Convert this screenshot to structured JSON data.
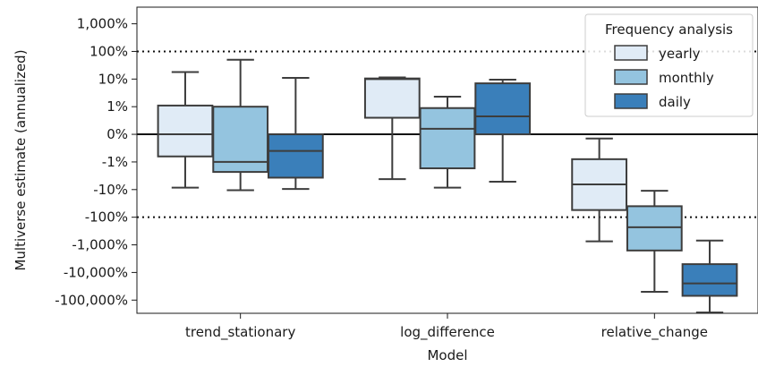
{
  "chart_data": {
    "type": "boxplot",
    "xlabel": "Model",
    "ylabel": "Multiverse estimate (annualized)",
    "y_scale": "symlog",
    "ylim": [
      -300000,
      4000
    ],
    "y_ticks": [
      {
        "value": 1000,
        "label": "1,000%"
      },
      {
        "value": 100,
        "label": "100%"
      },
      {
        "value": 10,
        "label": "10%"
      },
      {
        "value": 1,
        "label": "1%"
      },
      {
        "value": 0,
        "label": "0%"
      },
      {
        "value": -1,
        "label": "-1%"
      },
      {
        "value": -10,
        "label": "-10%"
      },
      {
        "value": -100,
        "label": "-100%"
      },
      {
        "value": -1000,
        "label": "-1,000%"
      },
      {
        "value": -10000,
        "label": "-10,000%"
      },
      {
        "value": -100000,
        "label": "-100,000%"
      }
    ],
    "reference_lines": [
      {
        "value": 100,
        "style": "dotted"
      },
      {
        "value": 0,
        "style": "solid"
      },
      {
        "value": -100,
        "style": "dotted"
      }
    ],
    "categories": [
      "trend_stationary",
      "log_difference",
      "relative_change"
    ],
    "legend": {
      "title": "Frequency analysis",
      "position": "top-right"
    },
    "series": [
      {
        "name": "yearly",
        "color": "#e0ebf6",
        "boxes": [
          {
            "whisker_low": -8.5,
            "q1": -0.8,
            "median": 0,
            "q3": 1.1,
            "whisker_high": 18
          },
          {
            "whisker_low": -4.2,
            "q1": 0.6,
            "median": 10,
            "q3": 10.5,
            "whisker_high": 11.5
          },
          {
            "whisker_low": -750,
            "q1": -55,
            "median": -6.5,
            "q3": -0.9,
            "whisker_high": -0.15
          }
        ]
      },
      {
        "name": "monthly",
        "color": "#94c4df",
        "boxes": [
          {
            "whisker_low": -10.5,
            "q1": -2.3,
            "median": -1,
            "q3": 1,
            "whisker_high": 50
          },
          {
            "whisker_low": -8.5,
            "q1": -1.7,
            "median": 0.2,
            "q3": 0.95,
            "whisker_high": 2.3
          },
          {
            "whisker_low": -50000,
            "q1": -1600,
            "median": -230,
            "q3": -40,
            "whisker_high": -11
          }
        ]
      },
      {
        "name": "daily",
        "color": "#3a7fba",
        "boxes": [
          {
            "whisker_low": -9.5,
            "q1": -3.7,
            "median": -0.6,
            "q3": 0,
            "whisker_high": 11
          },
          {
            "whisker_low": -5.2,
            "q1": 0,
            "median": 0.65,
            "q3": 7,
            "whisker_high": 9.5
          },
          {
            "whisker_low": -280000,
            "q1": -70000,
            "median": -25000,
            "q3": -5000,
            "whisker_high": -700
          }
        ]
      }
    ]
  }
}
